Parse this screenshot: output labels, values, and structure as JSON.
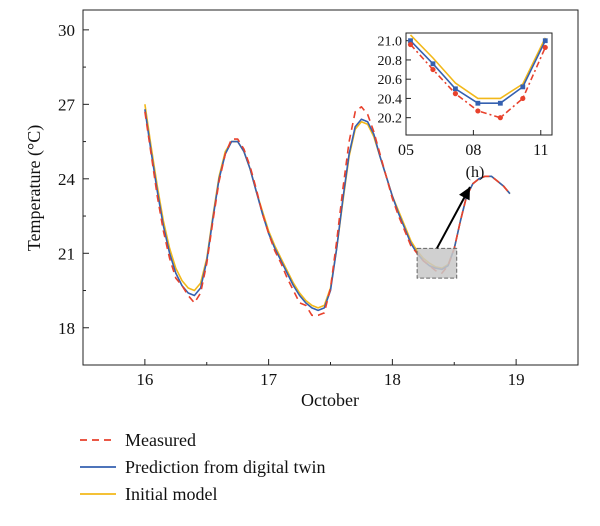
{
  "chart_data": [
    {
      "type": "line",
      "xlabel": "October",
      "ylabel": "Temperature (°C)",
      "xlim": [
        15.5,
        19.5
      ],
      "ylim": [
        16.5,
        30.8
      ],
      "xticks": [
        16,
        17,
        18,
        19
      ],
      "yticks": [
        18,
        21,
        24,
        27,
        30
      ],
      "grid": false,
      "legend_position": "bottom-left, below plot",
      "series": [
        {
          "name": "Measured",
          "color": "#e8412c",
          "style": "dashed",
          "x": [
            16.0,
            16.05,
            16.1,
            16.15,
            16.2,
            16.25,
            16.3,
            16.35,
            16.4,
            16.45,
            16.5,
            16.55,
            16.6,
            16.65,
            16.7,
            16.75,
            16.8,
            16.85,
            16.9,
            16.95,
            17.0,
            17.05,
            17.1,
            17.15,
            17.2,
            17.25,
            17.3,
            17.35,
            17.4,
            17.45,
            17.5,
            17.55,
            17.6,
            17.65,
            17.7,
            17.75,
            17.8,
            17.85,
            17.9,
            17.95,
            18.0,
            18.05,
            18.1,
            18.15,
            18.2,
            18.25,
            18.3,
            18.35,
            18.4,
            18.45,
            18.5,
            18.55,
            18.6,
            18.65,
            18.7,
            18.75,
            18.8,
            18.85,
            18.9,
            18.95
          ],
          "y": [
            26.7,
            25.0,
            23.3,
            21.9,
            20.8,
            20.0,
            19.7,
            19.3,
            19.0,
            19.4,
            20.6,
            22.3,
            23.9,
            25.0,
            25.6,
            25.6,
            25.2,
            24.5,
            23.6,
            22.6,
            21.8,
            21.1,
            20.6,
            20.0,
            19.5,
            19.0,
            18.9,
            18.5,
            18.5,
            18.6,
            19.6,
            21.5,
            23.6,
            25.5,
            26.7,
            26.9,
            26.6,
            25.9,
            25.0,
            24.1,
            23.2,
            22.5,
            21.9,
            21.3,
            21.0,
            20.7,
            20.5,
            20.3,
            20.2,
            20.5,
            21.2,
            22.3,
            23.3,
            23.8,
            24.0,
            24.1,
            24.1,
            23.9,
            23.7,
            23.4
          ]
        },
        {
          "name": "Prediction from digital twin",
          "color": "#3560b0",
          "style": "solid",
          "x": [
            16.0,
            16.05,
            16.1,
            16.15,
            16.2,
            16.25,
            16.3,
            16.35,
            16.4,
            16.45,
            16.5,
            16.55,
            16.6,
            16.65,
            16.7,
            16.75,
            16.8,
            16.85,
            16.9,
            16.95,
            17.0,
            17.05,
            17.1,
            17.15,
            17.2,
            17.25,
            17.3,
            17.35,
            17.4,
            17.45,
            17.5,
            17.55,
            17.6,
            17.65,
            17.7,
            17.75,
            17.8,
            17.85,
            17.9,
            17.95,
            18.0,
            18.05,
            18.1,
            18.15,
            18.2,
            18.25,
            18.3,
            18.35,
            18.4,
            18.45,
            18.5,
            18.55,
            18.6,
            18.65,
            18.7,
            18.75,
            18.8,
            18.85,
            18.9,
            18.95
          ],
          "y": [
            26.8,
            25.1,
            23.5,
            22.1,
            21.0,
            20.2,
            19.7,
            19.4,
            19.3,
            19.6,
            20.7,
            22.4,
            24.0,
            25.0,
            25.5,
            25.5,
            25.1,
            24.4,
            23.5,
            22.6,
            21.8,
            21.2,
            20.7,
            20.2,
            19.7,
            19.3,
            19.0,
            18.8,
            18.7,
            18.8,
            19.5,
            21.2,
            23.2,
            25.0,
            26.1,
            26.4,
            26.3,
            25.8,
            24.9,
            24.1,
            23.3,
            22.6,
            22.0,
            21.4,
            21.0,
            20.7,
            20.5,
            20.4,
            20.35,
            20.5,
            21.2,
            22.3,
            23.3,
            23.8,
            24.0,
            24.1,
            24.1,
            23.9,
            23.7,
            23.4
          ]
        },
        {
          "name": "Initial model",
          "color": "#f2b81a",
          "style": "solid",
          "x": [
            16.0,
            16.05,
            16.1,
            16.15,
            16.2,
            16.25,
            16.3,
            16.35,
            16.4,
            16.45,
            16.5,
            16.55,
            16.6,
            16.65,
            16.7,
            16.75,
            16.8,
            16.85,
            16.9,
            16.95,
            17.0,
            17.05,
            17.1,
            17.15,
            17.2,
            17.25,
            17.3,
            17.35,
            17.4,
            17.45,
            17.5,
            17.55,
            17.6,
            17.65,
            17.7,
            17.75,
            17.8,
            17.85,
            17.9,
            17.95,
            18.0,
            18.05,
            18.1,
            18.15,
            18.2,
            18.25,
            18.3,
            18.35,
            18.4,
            18.45,
            18.5,
            18.55,
            18.6,
            18.65,
            18.7,
            18.75,
            18.8,
            18.85,
            18.9,
            18.95
          ],
          "y": [
            27.0,
            25.3,
            23.7,
            22.3,
            21.2,
            20.4,
            19.9,
            19.6,
            19.5,
            19.8,
            20.8,
            22.5,
            24.1,
            25.1,
            25.5,
            25.5,
            25.1,
            24.4,
            23.5,
            22.7,
            21.9,
            21.3,
            20.8,
            20.3,
            19.8,
            19.4,
            19.1,
            18.9,
            18.8,
            18.9,
            19.6,
            21.2,
            23.1,
            24.9,
            26.0,
            26.3,
            26.2,
            25.7,
            24.9,
            24.1,
            23.3,
            22.7,
            22.1,
            21.5,
            21.1,
            20.8,
            20.6,
            20.45,
            20.4,
            20.55,
            21.2,
            22.3,
            23.3,
            23.8,
            24.0,
            24.1,
            24.1,
            23.9,
            23.7,
            23.4
          ]
        }
      ],
      "annotations": [
        {
          "type": "highlight-box",
          "x_range": [
            18.2,
            18.52
          ],
          "y_range": [
            20.0,
            21.2
          ],
          "color": "#c8c8c8"
        },
        {
          "type": "arrow",
          "from": "highlight-box",
          "to": "inset"
        }
      ]
    },
    {
      "type": "line",
      "role": "inset",
      "xlabel": "(h)",
      "ylabel": "",
      "xlim": [
        5,
        11.5
      ],
      "ylim": [
        20.02,
        21.08
      ],
      "xticks": [
        5,
        8,
        11
      ],
      "xtick_labels": [
        "05",
        "08",
        "11"
      ],
      "yticks": [
        20.2,
        20.4,
        20.6,
        20.8,
        21.0
      ],
      "ytick_labels": [
        "20.2",
        "20.4",
        "20.6",
        "20.8",
        "21.0"
      ],
      "series": [
        {
          "name": "Measured",
          "color": "#e8412c",
          "style": "dash-dot",
          "marker": "circle",
          "x": [
            5.2,
            6.2,
            7.2,
            8.2,
            9.2,
            10.2,
            11.2
          ],
          "y": [
            20.96,
            20.7,
            20.45,
            20.27,
            20.2,
            20.4,
            20.93
          ]
        },
        {
          "name": "Prediction from digital twin",
          "color": "#3560b0",
          "style": "solid",
          "marker": "square",
          "x": [
            5.2,
            6.2,
            7.2,
            8.2,
            9.2,
            10.2,
            11.2
          ],
          "y": [
            21.0,
            20.76,
            20.5,
            20.35,
            20.35,
            20.52,
            21.0
          ]
        },
        {
          "name": "Initial model",
          "color": "#f2b81a",
          "style": "solid",
          "marker": "none",
          "x": [
            5.2,
            6.2,
            7.2,
            8.2,
            9.2,
            10.2,
            11.2
          ],
          "y": [
            21.06,
            20.82,
            20.56,
            20.4,
            20.4,
            20.55,
            21.03
          ]
        }
      ]
    }
  ],
  "legend": {
    "items": [
      {
        "label": "Measured",
        "color": "#e8412c",
        "style": "dashed"
      },
      {
        "label": "Prediction from digital twin",
        "color": "#3560b0",
        "style": "solid"
      },
      {
        "label": "Initial model",
        "color": "#f2b81a",
        "style": "solid"
      }
    ]
  }
}
